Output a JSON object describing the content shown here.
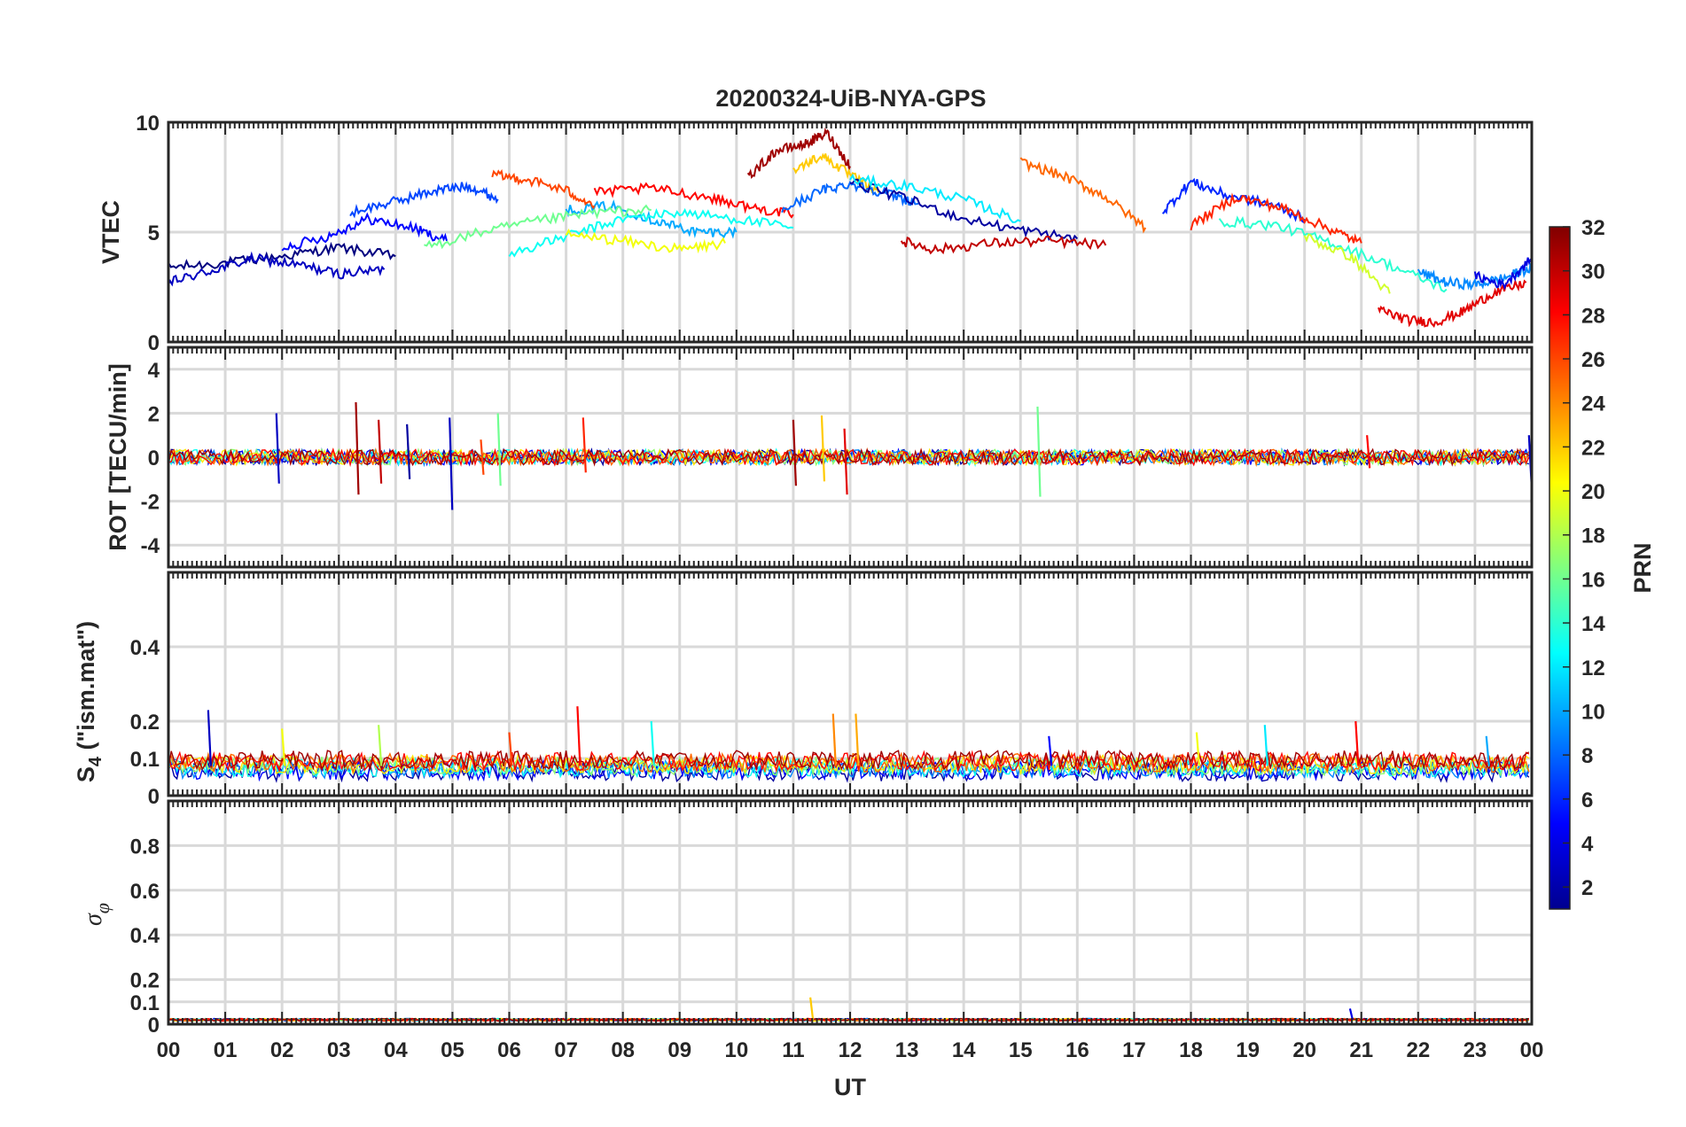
{
  "chart_data": {
    "type": "line",
    "title": "20200324-UiB-NYA-GPS",
    "xlabel": "UT",
    "xlim": [
      0,
      24
    ],
    "x_ticks": [
      "00",
      "01",
      "02",
      "03",
      "04",
      "05",
      "06",
      "07",
      "08",
      "09",
      "10",
      "11",
      "12",
      "13",
      "14",
      "15",
      "16",
      "17",
      "18",
      "19",
      "20",
      "21",
      "22",
      "23",
      "00"
    ],
    "grid": true,
    "color_scale": "jet",
    "colorbar": {
      "label": "PRN",
      "range": [
        1,
        32
      ],
      "ticks": [
        "2",
        "4",
        "6",
        "8",
        "10",
        "12",
        "14",
        "16",
        "18",
        "20",
        "22",
        "24",
        "26",
        "28",
        "30",
        "32"
      ],
      "placement": "right"
    },
    "panels": [
      {
        "id": "vtec",
        "ylabel": "VTEC",
        "ylim": [
          0,
          10
        ],
        "y_ticks": [
          {
            "v": 0,
            "t": "0"
          },
          {
            "v": 5,
            "t": "5"
          },
          {
            "v": 10,
            "t": "10"
          }
        ],
        "series": [
          {
            "prn": 1,
            "x": [
              0.0,
              1.0,
              2.0,
              3.0,
              4.0
            ],
            "y": [
              3.4,
              3.6,
              3.9,
              4.3,
              3.9
            ]
          },
          {
            "prn": 3,
            "x": [
              0.0,
              0.7,
              1.5,
              2.3,
              3.0,
              3.8
            ],
            "y": [
              2.7,
              3.2,
              3.8,
              3.5,
              3.1,
              3.3
            ]
          },
          {
            "prn": 5,
            "x": [
              2.0,
              2.8,
              3.5,
              4.3,
              4.9
            ],
            "y": [
              4.3,
              4.8,
              5.6,
              5.2,
              4.6
            ]
          },
          {
            "prn": 7,
            "x": [
              3.2,
              4.0,
              4.7,
              5.3,
              5.8
            ],
            "y": [
              5.9,
              6.4,
              6.9,
              7.1,
              6.5
            ]
          },
          {
            "prn": 10,
            "x": [
              7.0,
              7.8,
              8.6,
              9.3,
              10.0
            ],
            "y": [
              6.0,
              6.2,
              5.5,
              5.0,
              5.0
            ]
          },
          {
            "prn": 13,
            "x": [
              6.0,
              7.0,
              8.0,
              9.0,
              10.0,
              11.0
            ],
            "y": [
              4.0,
              4.8,
              5.6,
              5.9,
              5.6,
              5.2
            ]
          },
          {
            "prn": 16,
            "x": [
              4.5,
              5.5,
              6.5,
              7.5,
              8.5
            ],
            "y": [
              4.3,
              5.0,
              5.5,
              5.9,
              6.0
            ]
          },
          {
            "prn": 20,
            "x": [
              7.0,
              8.0,
              9.0,
              9.8
            ],
            "y": [
              4.9,
              4.6,
              4.2,
              4.5
            ]
          },
          {
            "prn": 26,
            "x": [
              5.7,
              6.3,
              7.0,
              7.5
            ],
            "y": [
              7.6,
              7.4,
              6.9,
              6.2
            ]
          },
          {
            "prn": 28,
            "x": [
              7.5,
              8.5,
              9.5,
              10.3,
              11.0
            ],
            "y": [
              6.8,
              7.0,
              6.6,
              6.1,
              5.8
            ]
          },
          {
            "prn": 31,
            "x": [
              10.2,
              10.7,
              11.2,
              11.6,
              12.0
            ],
            "y": [
              7.5,
              8.7,
              9.0,
              9.5,
              8.0
            ]
          },
          {
            "prn": 22,
            "x": [
              11.0,
              11.5,
              12.0,
              12.5
            ],
            "y": [
              7.8,
              8.5,
              7.6,
              6.8
            ]
          },
          {
            "prn": 8,
            "x": [
              10.8,
              11.5,
              12.0,
              12.6,
              13.2
            ],
            "y": [
              6.0,
              6.9,
              7.2,
              6.8,
              6.3
            ]
          },
          {
            "prn": 2,
            "x": [
              12.0,
              13.0,
              14.0,
              15.0,
              16.0
            ],
            "y": [
              7.3,
              6.5,
              5.6,
              5.1,
              4.7
            ]
          },
          {
            "prn": 12,
            "x": [
              12.0,
              13.0,
              14.0,
              15.0
            ],
            "y": [
              7.4,
              7.1,
              6.5,
              5.5
            ]
          },
          {
            "prn": 30,
            "x": [
              12.9,
              13.5,
              14.5,
              15.5,
              16.5
            ],
            "y": [
              4.6,
              4.2,
              4.5,
              4.6,
              4.4
            ]
          },
          {
            "prn": 25,
            "x": [
              15.0,
              15.8,
              16.5,
              17.2
            ],
            "y": [
              8.2,
              7.5,
              6.6,
              5.2
            ]
          },
          {
            "prn": 6,
            "x": [
              17.5,
              18.0,
              18.6,
              19.5,
              20.0
            ],
            "y": [
              5.9,
              7.3,
              6.7,
              6.2,
              5.6
            ]
          },
          {
            "prn": 27,
            "x": [
              18.0,
              18.8,
              19.6,
              20.4,
              21.0
            ],
            "y": [
              5.3,
              6.6,
              6.1,
              5.2,
              4.5
            ]
          },
          {
            "prn": 14,
            "x": [
              18.5,
              19.5,
              20.5,
              21.5,
              22.5
            ],
            "y": [
              5.5,
              5.3,
              4.5,
              3.5,
              2.4
            ]
          },
          {
            "prn": 19,
            "x": [
              20.0,
              20.8,
              21.5
            ],
            "y": [
              4.8,
              3.9,
              2.2
            ]
          },
          {
            "prn": 29,
            "x": [
              21.3,
              21.8,
              22.3,
              22.8,
              23.3,
              23.9
            ],
            "y": [
              1.5,
              1.0,
              0.9,
              1.4,
              2.2,
              2.7
            ]
          },
          {
            "prn": 9,
            "x": [
              22.0,
              22.5,
              23.0,
              23.5,
              24.0
            ],
            "y": [
              3.2,
              2.7,
              2.6,
              2.9,
              3.4
            ]
          },
          {
            "prn": 4,
            "x": [
              23.0,
              23.5,
              24.0
            ],
            "y": [
              3.0,
              2.6,
              3.8
            ]
          }
        ]
      },
      {
        "id": "rot",
        "ylabel": "ROT [TECU/min]",
        "ylim": [
          -5,
          5
        ],
        "y_ticks": [
          {
            "v": -4,
            "t": "-4"
          },
          {
            "v": -2,
            "t": "-2"
          },
          {
            "v": 0,
            "t": "0"
          },
          {
            "v": 2,
            "t": "2"
          },
          {
            "v": 4,
            "t": "4"
          }
        ],
        "baseline": 0,
        "spikes": [
          {
            "x": 1.9,
            "hi": 2.0,
            "lo": -1.2,
            "prn": 3
          },
          {
            "x": 3.3,
            "hi": 2.5,
            "lo": -1.7,
            "prn": 31
          },
          {
            "x": 3.7,
            "hi": 1.7,
            "lo": -1.2,
            "prn": 30
          },
          {
            "x": 4.2,
            "hi": 1.5,
            "lo": -1.0,
            "prn": 2
          },
          {
            "x": 4.95,
            "hi": 1.8,
            "lo": -2.4,
            "prn": 3
          },
          {
            "x": 5.5,
            "hi": 0.8,
            "lo": -0.8,
            "prn": 26
          },
          {
            "x": 5.8,
            "hi": 2.0,
            "lo": -1.3,
            "prn": 16
          },
          {
            "x": 7.3,
            "hi": 1.8,
            "lo": -0.7,
            "prn": 27
          },
          {
            "x": 11.0,
            "hi": 1.7,
            "lo": -1.3,
            "prn": 31
          },
          {
            "x": 11.5,
            "hi": 1.9,
            "lo": -1.1,
            "prn": 22
          },
          {
            "x": 11.9,
            "hi": 1.3,
            "lo": -1.7,
            "prn": 29
          },
          {
            "x": 15.3,
            "hi": 2.3,
            "lo": -1.8,
            "prn": 16
          },
          {
            "x": 21.1,
            "hi": 1.0,
            "lo": -0.5,
            "prn": 28
          },
          {
            "x": 23.95,
            "hi": 1.0,
            "lo": -1.3,
            "prn": 3
          }
        ]
      },
      {
        "id": "s4",
        "ylabel": "S4 (\"ism.mat\")",
        "ylim": [
          0,
          0.6
        ],
        "y_ticks": [
          {
            "v": 0,
            "t": "0"
          },
          {
            "v": 0.1,
            "t": "0.1"
          },
          {
            "v": 0.2,
            "t": "0.2"
          },
          {
            "v": 0.4,
            "t": "0.4"
          }
        ],
        "baseline": 0.08,
        "spikes": [
          {
            "x": 0.7,
            "hi": 0.23,
            "prn": 3
          },
          {
            "x": 2.0,
            "hi": 0.18,
            "prn": 20
          },
          {
            "x": 3.7,
            "hi": 0.19,
            "prn": 18
          },
          {
            "x": 6.0,
            "hi": 0.17,
            "prn": 26
          },
          {
            "x": 7.2,
            "hi": 0.24,
            "prn": 28
          },
          {
            "x": 8.5,
            "hi": 0.2,
            "prn": 13
          },
          {
            "x": 11.7,
            "hi": 0.22,
            "prn": 24
          },
          {
            "x": 12.1,
            "hi": 0.22,
            "prn": 23
          },
          {
            "x": 15.5,
            "hi": 0.16,
            "prn": 5
          },
          {
            "x": 18.1,
            "hi": 0.17,
            "prn": 20
          },
          {
            "x": 19.3,
            "hi": 0.19,
            "prn": 12
          },
          {
            "x": 20.9,
            "hi": 0.2,
            "prn": 28
          },
          {
            "x": 23.2,
            "hi": 0.16,
            "prn": 10
          }
        ]
      },
      {
        "id": "sigma_phi",
        "ylabel": "σφ",
        "ylim": [
          0,
          1
        ],
        "y_ticks": [
          {
            "v": 0,
            "t": "0"
          },
          {
            "v": 0.1,
            "t": "0.1"
          },
          {
            "v": 0.2,
            "t": "0.2"
          },
          {
            "v": 0.4,
            "t": "0.4"
          },
          {
            "v": 0.6,
            "t": "0.6"
          },
          {
            "v": 0.8,
            "t": "0.8"
          }
        ],
        "baseline": 0.02,
        "spikes": [
          {
            "x": 11.3,
            "hi": 0.12,
            "prn": 22
          },
          {
            "x": 20.8,
            "hi": 0.07,
            "prn": 4
          }
        ]
      }
    ]
  }
}
